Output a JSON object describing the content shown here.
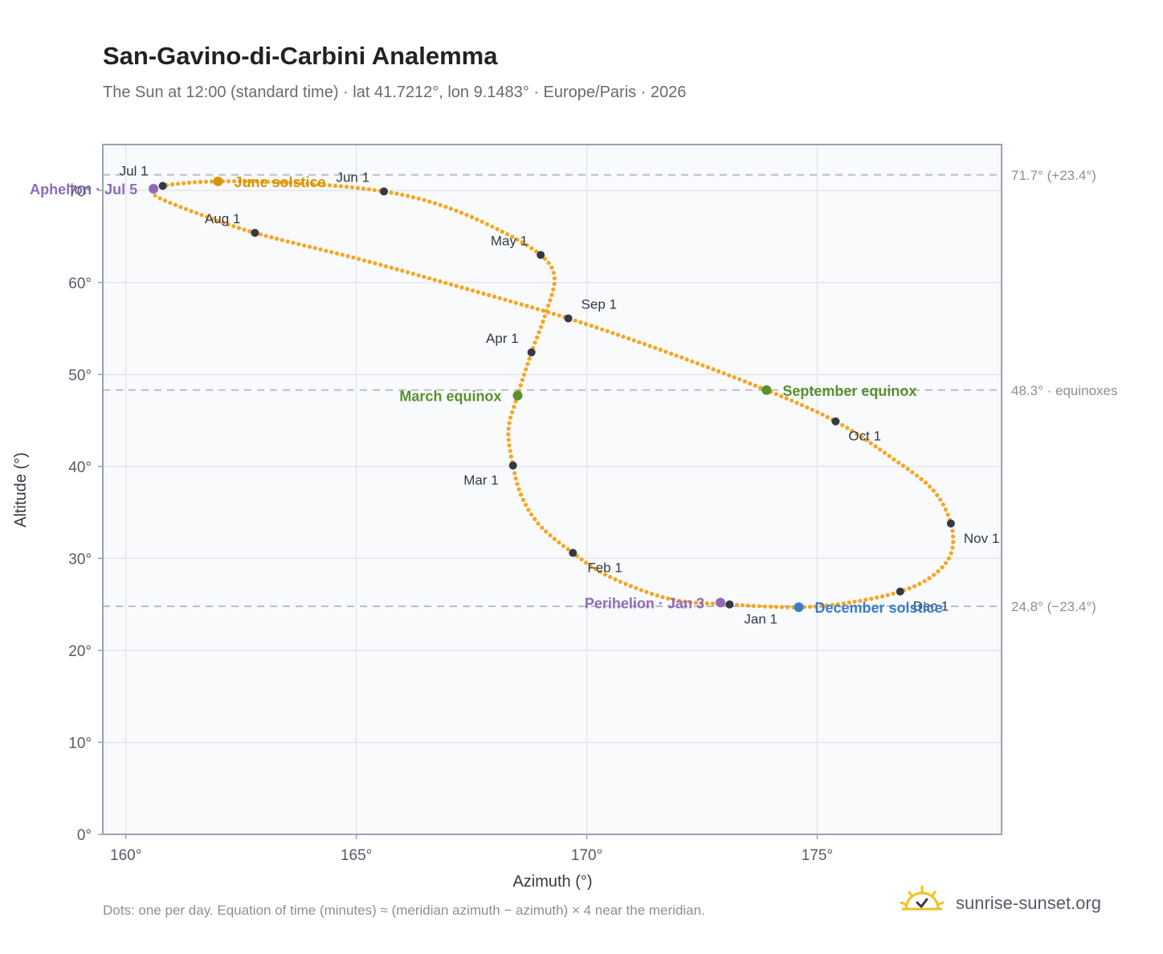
{
  "header": {
    "title": "San-Gavino-di-Carbini Analemma",
    "subtitle": "The Sun at 12:00 (standard time) · lat 41.7212°, lon 9.1483° · Europe/Paris · 2026"
  },
  "footer": {
    "note": "Dots: one per day. Equation of time (minutes) ≈ (meridian azimuth − azimuth) × 4 near the meridian.",
    "brand": "sunrise-sunset.org",
    "brand_icon": "sun-check-icon"
  },
  "colors": {
    "curve": "#f5a623",
    "month_marker": "#333a44",
    "equinox": "#5a8f2e",
    "june_solstice": "#d4950a",
    "december_solstice": "#3a7dc9",
    "apsis": "#8e6bb8",
    "grid": "#e3e7ee",
    "plot_bg": "#f8fafc",
    "frame": "#9aa3b2"
  },
  "chart_data": {
    "type": "scatter",
    "xlabel": "Azimuth (°)",
    "ylabel": "Altitude (°)",
    "xlim": [
      159.5,
      179
    ],
    "ylim": [
      0,
      75
    ],
    "xticks": [
      160,
      165,
      170,
      175
    ],
    "xtick_labels": [
      "160°",
      "165°",
      "170°",
      "175°"
    ],
    "yticks": [
      0,
      10,
      20,
      30,
      40,
      50,
      60,
      70
    ],
    "ytick_labels": [
      "0°",
      "10°",
      "20°",
      "30°",
      "40°",
      "50°",
      "60°",
      "70°"
    ],
    "grid": true,
    "reference_lines": [
      {
        "y": 71.7,
        "label": "71.7° (+23.4°)"
      },
      {
        "y": 48.3,
        "label": "48.3° · equinoxes"
      },
      {
        "y": 24.8,
        "label": "24.8° (−23.4°)"
      }
    ],
    "month_markers": [
      {
        "label": "Jan 1",
        "x": 173.1,
        "y": 25.0
      },
      {
        "label": "Feb 1",
        "x": 169.7,
        "y": 30.6
      },
      {
        "label": "Mar 1",
        "x": 168.4,
        "y": 40.1
      },
      {
        "label": "Apr 1",
        "x": 168.8,
        "y": 52.4
      },
      {
        "label": "May 1",
        "x": 169.0,
        "y": 63.0
      },
      {
        "label": "Jun 1",
        "x": 165.6,
        "y": 69.9
      },
      {
        "label": "Jul 1",
        "x": 160.8,
        "y": 70.5
      },
      {
        "label": "Aug 1",
        "x": 162.8,
        "y": 65.4
      },
      {
        "label": "Sep 1",
        "x": 169.6,
        "y": 56.1
      },
      {
        "label": "Oct 1",
        "x": 175.4,
        "y": 44.9
      },
      {
        "label": "Nov 1",
        "x": 177.9,
        "y": 33.8
      },
      {
        "label": "Dec 1",
        "x": 176.8,
        "y": 26.4
      }
    ],
    "events": [
      {
        "label": "March equinox",
        "x": 168.5,
        "y": 47.7,
        "color": "#5a8f2e"
      },
      {
        "label": "June solstice",
        "x": 162.0,
        "y": 71.0,
        "color": "#d4950a"
      },
      {
        "label": "September equinox",
        "x": 173.9,
        "y": 48.3,
        "color": "#5a8f2e"
      },
      {
        "label": "December solstice",
        "x": 174.6,
        "y": 24.7,
        "color": "#3a7dc9"
      },
      {
        "label": "Aphelion · Jul 5",
        "x": 160.6,
        "y": 70.2,
        "color": "#8e6bb8"
      },
      {
        "label": "Perihelion · Jan 3",
        "x": 172.9,
        "y": 25.2,
        "color": "#8e6bb8"
      }
    ],
    "series": [
      {
        "marker": "one dot per day",
        "path_points": [
          {
            "x": 173.1,
            "y": 25.0
          },
          {
            "x": 171.8,
            "y": 25.6
          },
          {
            "x": 170.5,
            "y": 28.0
          },
          {
            "x": 169.7,
            "y": 30.6
          },
          {
            "x": 169.0,
            "y": 33.5
          },
          {
            "x": 168.6,
            "y": 36.6
          },
          {
            "x": 168.4,
            "y": 40.1
          },
          {
            "x": 168.3,
            "y": 44.0
          },
          {
            "x": 168.5,
            "y": 47.7
          },
          {
            "x": 168.8,
            "y": 52.4
          },
          {
            "x": 169.1,
            "y": 56.5
          },
          {
            "x": 169.3,
            "y": 60.5
          },
          {
            "x": 169.0,
            "y": 63.0
          },
          {
            "x": 168.1,
            "y": 65.7
          },
          {
            "x": 166.9,
            "y": 68.3
          },
          {
            "x": 165.6,
            "y": 69.9
          },
          {
            "x": 163.8,
            "y": 70.8
          },
          {
            "x": 162.0,
            "y": 71.0
          },
          {
            "x": 160.8,
            "y": 70.5
          },
          {
            "x": 160.6,
            "y": 69.6
          },
          {
            "x": 161.3,
            "y": 68.0
          },
          {
            "x": 162.8,
            "y": 65.4
          },
          {
            "x": 165.1,
            "y": 62.5
          },
          {
            "x": 167.4,
            "y": 59.3
          },
          {
            "x": 169.6,
            "y": 56.1
          },
          {
            "x": 171.7,
            "y": 52.5
          },
          {
            "x": 173.9,
            "y": 48.3
          },
          {
            "x": 175.4,
            "y": 44.9
          },
          {
            "x": 176.6,
            "y": 41.0
          },
          {
            "x": 177.5,
            "y": 37.5
          },
          {
            "x": 177.9,
            "y": 33.8
          },
          {
            "x": 177.9,
            "y": 30.5
          },
          {
            "x": 177.5,
            "y": 28.1
          },
          {
            "x": 176.8,
            "y": 26.4
          },
          {
            "x": 175.7,
            "y": 25.2
          },
          {
            "x": 174.6,
            "y": 24.7
          },
          {
            "x": 173.1,
            "y": 25.0
          }
        ]
      }
    ]
  }
}
